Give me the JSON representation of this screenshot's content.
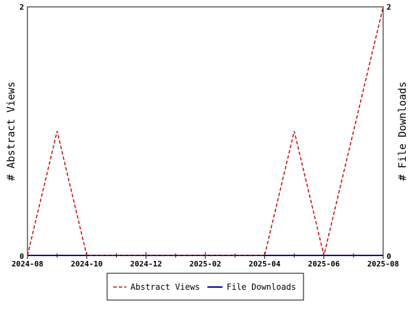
{
  "chart_data": {
    "type": "line",
    "x": [
      "2024-08",
      "2024-09",
      "2024-10",
      "2024-11",
      "2024-12",
      "2025-01",
      "2025-02",
      "2025-03",
      "2025-04",
      "2025-05",
      "2025-06",
      "2025-07",
      "2025-08"
    ],
    "series": [
      {
        "name": "Abstract Views",
        "values": [
          0,
          1,
          0,
          0,
          0,
          0,
          0,
          0,
          0,
          1,
          0,
          1,
          2
        ],
        "color": "#cc0000",
        "style": "dashed",
        "axis": "left"
      },
      {
        "name": "File Downloads",
        "values": [
          0,
          0,
          0,
          0,
          0,
          0,
          0,
          0,
          0,
          0,
          0,
          0,
          0
        ],
        "color": "#000099",
        "style": "solid",
        "axis": "right"
      }
    ],
    "x_tick_labels": [
      "2024-08",
      "2024-10",
      "2024-12",
      "2025-02",
      "2025-04",
      "2025-06",
      "2025-08"
    ],
    "ylabel_left": "# Abstract Views",
    "ylabel_right": "# File Downloads",
    "ylim_left": [
      0,
      2
    ],
    "ylim_right": [
      0,
      2
    ],
    "y_tick_labels_left": [
      "0",
      "2"
    ],
    "y_tick_labels_right": [
      "0",
      "2"
    ],
    "grid": false,
    "legend_position": "bottom-center"
  }
}
